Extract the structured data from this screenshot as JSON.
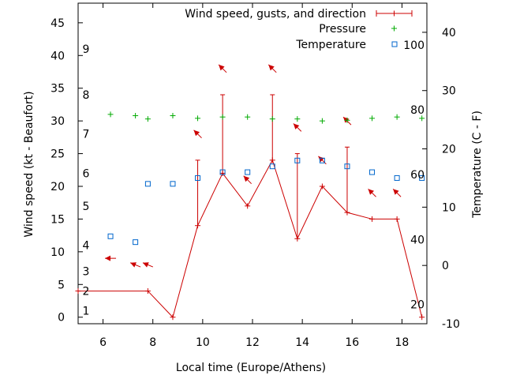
{
  "chart_data": {
    "type": "line",
    "xlabel": "Local time (Europe/Athens)",
    "ylabel": "Wind speed (kt - Beaufort)",
    "y2label": "Temperature (C - F)",
    "xlim": [
      5,
      19
    ],
    "ylim": [
      -1,
      48
    ],
    "y2lim": [
      -10,
      45
    ],
    "x_ticks": [
      "6",
      "8",
      "10",
      "12",
      "14",
      "16",
      "18"
    ],
    "y_ticks": [
      "0",
      "5",
      "10",
      "15",
      "20",
      "25",
      "30",
      "35",
      "40",
      "45"
    ],
    "y2_ticks": [
      "-10",
      "0",
      "10",
      "20",
      "30",
      "40"
    ],
    "beaufort_labels": [
      {
        "text": "1",
        "y": 1
      },
      {
        "text": "2",
        "y": 4
      },
      {
        "text": "3",
        "y": 7
      },
      {
        "text": "4",
        "y": 11
      },
      {
        "text": "5",
        "y": 17
      },
      {
        "text": "6",
        "y": 22
      },
      {
        "text": "7",
        "y": 28
      },
      {
        "text": "8",
        "y": 34
      },
      {
        "text": "9",
        "y": 41
      }
    ],
    "fahrenheit_labels": [
      {
        "text": "20",
        "t": -6.7
      },
      {
        "text": "40",
        "t": 4.4
      },
      {
        "text": "60",
        "t": 15.6
      },
      {
        "text": "80",
        "t": 26.7
      },
      {
        "text": "100",
        "t": 37.8
      }
    ],
    "legend_position": "top-right",
    "legend": [
      "Wind speed, gusts, and direction",
      "Pressure",
      "Temperature"
    ],
    "colors": {
      "wind": "#cc0000",
      "pressure": "#00aa00",
      "temperature": "#0066cc"
    },
    "series": [
      {
        "name": "Wind speed, gusts, and direction",
        "points": [
          {
            "x": 5.0,
            "y": 4,
            "gust": null
          },
          {
            "x": 7.8,
            "y": 4,
            "gust": null
          },
          {
            "x": 8.8,
            "y": 0,
            "gust": null
          },
          {
            "x": 9.8,
            "y": 14,
            "gust": 24
          },
          {
            "x": 10.8,
            "y": 22,
            "gust": 34
          },
          {
            "x": 11.8,
            "y": 17,
            "gust": null
          },
          {
            "x": 12.8,
            "y": 24,
            "gust": 34
          },
          {
            "x": 13.8,
            "y": 12,
            "gust": 25
          },
          {
            "x": 14.8,
            "y": 20,
            "gust": null
          },
          {
            "x": 15.8,
            "y": 16,
            "gust": 26
          },
          {
            "x": 16.8,
            "y": 15,
            "gust": null
          },
          {
            "x": 17.8,
            "y": 15,
            "gust": null
          },
          {
            "x": 18.8,
            "y": 0,
            "gust": null
          }
        ],
        "direction_arrows": [
          {
            "x": 6.3,
            "y": 9,
            "dir": "W"
          },
          {
            "x": 7.3,
            "y": 8,
            "dir": "WNW"
          },
          {
            "x": 7.8,
            "y": 8,
            "dir": "WNW"
          },
          {
            "x": 9.8,
            "y": 28,
            "dir": "NW"
          },
          {
            "x": 10.8,
            "y": 38,
            "dir": "NW"
          },
          {
            "x": 11.8,
            "y": 21,
            "dir": "NW"
          },
          {
            "x": 12.8,
            "y": 38,
            "dir": "NW"
          },
          {
            "x": 13.8,
            "y": 29,
            "dir": "NW"
          },
          {
            "x": 14.8,
            "y": 24,
            "dir": "NW"
          },
          {
            "x": 15.8,
            "y": 30,
            "dir": "NW"
          },
          {
            "x": 16.8,
            "y": 19,
            "dir": "NW"
          },
          {
            "x": 17.8,
            "y": 19,
            "dir": "NW"
          }
        ]
      },
      {
        "name": "Pressure",
        "points": [
          {
            "x": 6.3,
            "y": 31.0
          },
          {
            "x": 7.3,
            "y": 30.8
          },
          {
            "x": 7.8,
            "y": 30.3
          },
          {
            "x": 8.8,
            "y": 30.8
          },
          {
            "x": 9.8,
            "y": 30.4
          },
          {
            "x": 10.8,
            "y": 30.6
          },
          {
            "x": 11.8,
            "y": 30.6
          },
          {
            "x": 12.8,
            "y": 30.3
          },
          {
            "x": 13.8,
            "y": 30.3
          },
          {
            "x": 14.8,
            "y": 30.0
          },
          {
            "x": 15.8,
            "y": 30.1
          },
          {
            "x": 16.8,
            "y": 30.4
          },
          {
            "x": 17.8,
            "y": 30.6
          },
          {
            "x": 18.8,
            "y": 30.4
          }
        ]
      },
      {
        "name": "Temperature",
        "axis": "right",
        "points": [
          {
            "x": 6.3,
            "t": 5
          },
          {
            "x": 7.3,
            "t": 4
          },
          {
            "x": 7.8,
            "t": 14
          },
          {
            "x": 8.8,
            "t": 14
          },
          {
            "x": 9.8,
            "t": 15
          },
          {
            "x": 10.8,
            "t": 16
          },
          {
            "x": 11.8,
            "t": 16
          },
          {
            "x": 12.8,
            "t": 17
          },
          {
            "x": 13.8,
            "t": 18
          },
          {
            "x": 14.8,
            "t": 18
          },
          {
            "x": 15.8,
            "t": 17
          },
          {
            "x": 16.8,
            "t": 16
          },
          {
            "x": 17.8,
            "t": 15
          },
          {
            "x": 18.8,
            "t": 15
          }
        ]
      }
    ]
  }
}
